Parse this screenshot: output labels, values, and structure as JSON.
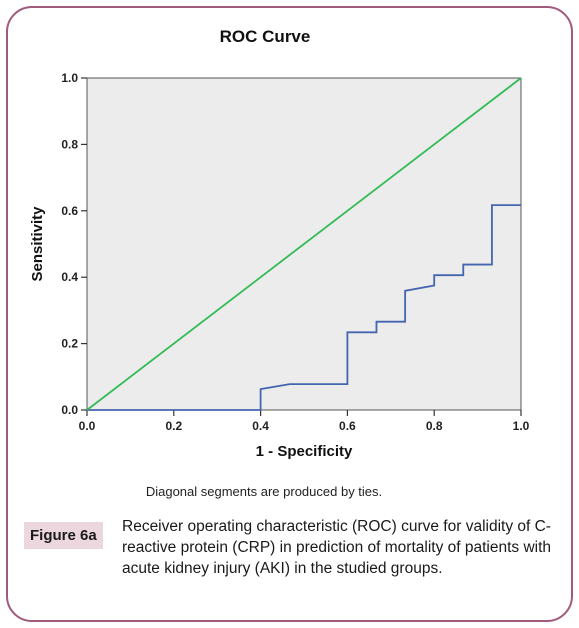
{
  "chart_data": {
    "type": "line",
    "title": "ROC Curve",
    "xlabel": "1 - Specificity",
    "ylabel": "Sensitivity",
    "xlim": [
      0,
      1
    ],
    "ylim": [
      0,
      1
    ],
    "x_ticks": [
      "0.0",
      "0.2",
      "0.4",
      "0.6",
      "0.8",
      "1.0"
    ],
    "y_ticks": [
      "0.0",
      "0.2",
      "0.4",
      "0.6",
      "0.8",
      "1.0"
    ],
    "grid": false,
    "series": [
      {
        "color": "#4466b0",
        "points": [
          [
            0.0,
            0.0
          ],
          [
            0.4,
            0.0
          ],
          [
            0.4,
            0.063
          ],
          [
            0.467,
            0.078
          ],
          [
            0.6,
            0.078
          ],
          [
            0.6,
            0.234
          ],
          [
            0.667,
            0.234
          ],
          [
            0.667,
            0.266
          ],
          [
            0.733,
            0.266
          ],
          [
            0.733,
            0.359
          ],
          [
            0.8,
            0.375
          ],
          [
            0.8,
            0.406
          ],
          [
            0.867,
            0.406
          ],
          [
            0.867,
            0.438
          ],
          [
            0.933,
            0.438
          ],
          [
            0.933,
            0.617
          ],
          [
            1.0,
            0.617
          ]
        ]
      },
      {
        "color": "#33bb55",
        "points": [
          [
            0.0,
            0.0
          ],
          [
            1.0,
            1.0
          ]
        ]
      }
    ],
    "footnote": "Diagonal segments are produced by ties."
  },
  "caption": {
    "label": "Figure 6a",
    "text": "Receiver operating characteristic (ROC) curve for validity of C-reactive protein (CRP) in prediction of mortality of patients with acute kidney injury (AKI) in the studied groups."
  },
  "colors": {
    "frame": "#a05a7c",
    "plot_bg": "#ececec",
    "badge_bg": "#ecd7df"
  }
}
